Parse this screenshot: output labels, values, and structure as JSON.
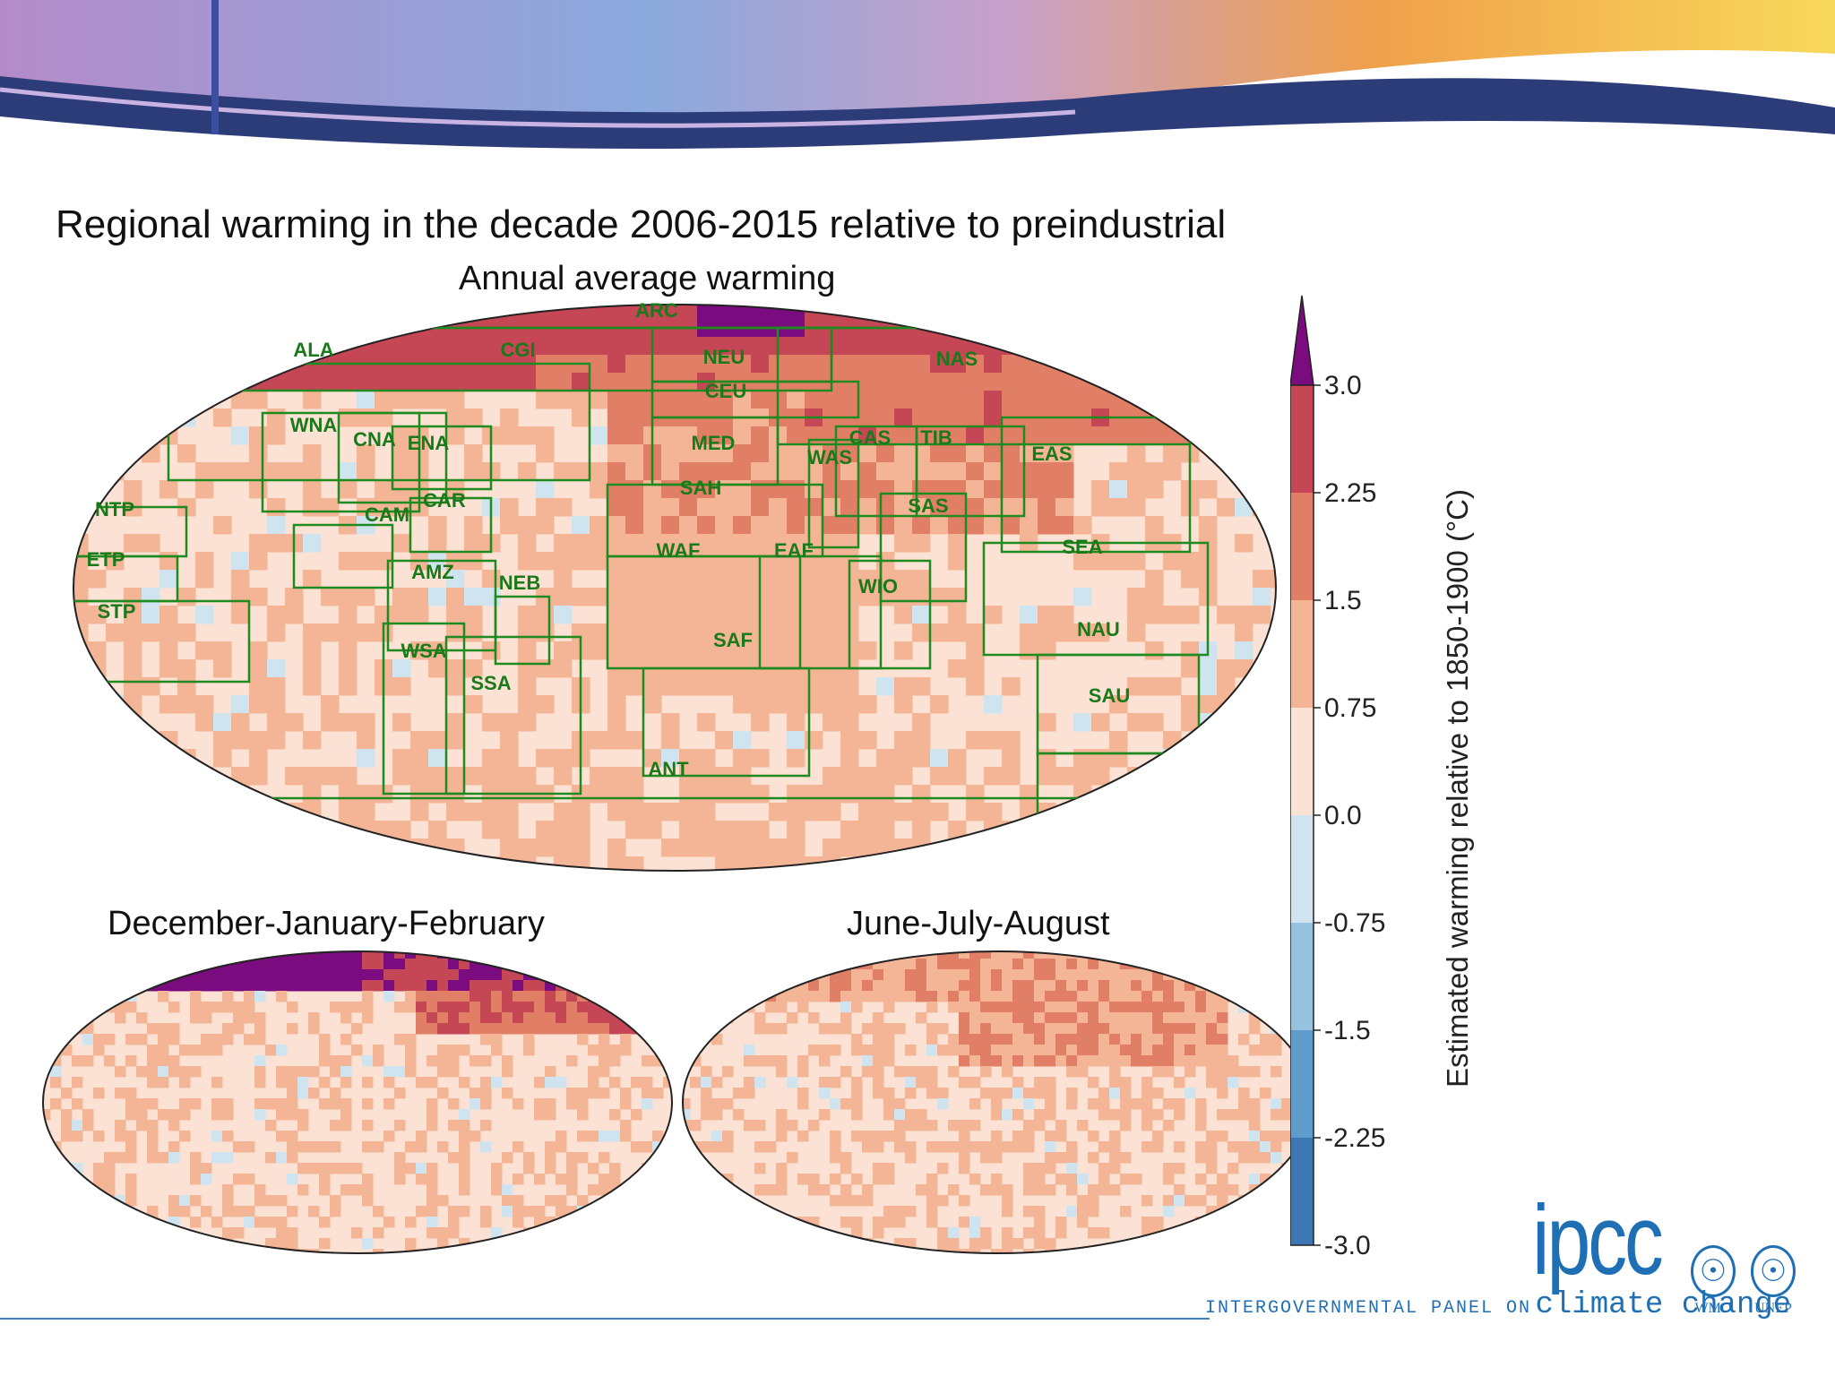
{
  "slide": {
    "title": "Regional warming in the decade 2006-2015 relative to preindustrial"
  },
  "chart_data": [
    {
      "type": "heatmap",
      "title": "Annual average warming",
      "projection": "Robinson world map",
      "regions": [
        "ARC",
        "ALA",
        "CGI",
        "NEU",
        "NAS",
        "CEU",
        "WNA",
        "CNA",
        "ENA",
        "MED",
        "CAS",
        "TIB",
        "WAS",
        "EAS",
        "SAH",
        "CAR",
        "NTP",
        "CAM",
        "SAS",
        "ETP",
        "WAF",
        "EAF",
        "SEA",
        "AMZ",
        "NEB",
        "WIO",
        "STP",
        "SAF",
        "NAU",
        "WSA",
        "SSA",
        "SAU",
        "ANT"
      ],
      "dominant_values": {
        "ARC": 2.6,
        "ALA": 2.4,
        "CGI": 2.4,
        "NAS": 2.0,
        "NEU": 1.6,
        "CEU": 1.6,
        "MED": 1.5,
        "SAH": 1.6,
        "CAS": 1.6,
        "TIB": 1.6,
        "WAS": 1.5,
        "EAS": 1.3,
        "WNA": 1.0,
        "CNA": 0.8,
        "ENA": 1.0,
        "CAR": 0.9,
        "CAM": 0.9,
        "NTP": 0.6,
        "ETP": 0.6,
        "STP": 0.6,
        "SAS": 1.1,
        "WAF": 1.1,
        "EAF": 1.1,
        "SEA": 0.9,
        "AMZ": 1.1,
        "NEB": 1.0,
        "WIO": 0.8,
        "SAF": 1.1,
        "NAU": 1.0,
        "SAU": 0.9,
        "WSA": 0.9,
        "SSA": 0.8,
        "ANT": 0.6
      }
    },
    {
      "type": "heatmap",
      "title": "December-January-February",
      "projection": "Robinson world map",
      "dominant_values": {
        "arctic": 3.2,
        "high_north": 2.3,
        "tropics": 0.9,
        "south": 0.6
      }
    },
    {
      "type": "heatmap",
      "title": "June-July-August",
      "projection": "Robinson world map",
      "dominant_values": {
        "arctic": 1.3,
        "high_north": 1.2,
        "tropics": 0.9,
        "south": 0.6
      }
    }
  ],
  "colorbar": {
    "label": "Estimated warming relative to 1850-1900 (°C)",
    "ticks": [
      "3.0",
      "2.25",
      "1.5",
      "0.75",
      "0.0",
      "-0.75",
      "-1.5",
      "-2.25",
      "-3.0"
    ],
    "min": -3.0,
    "max": 3.0,
    "extend": "max",
    "colors": [
      "#3d78b3",
      "#5f9bcb",
      "#95c2df",
      "#cfe4ef",
      "#fbe2d4",
      "#f4b596",
      "#e07f66",
      "#c54654",
      "#7b0c7f"
    ]
  },
  "logo": {
    "name": "ipcc",
    "line1": "INTERGOVERNMENTAL PANEL ON",
    "line2": "climate change",
    "partner1": "WMO",
    "partner2": "UNEP"
  }
}
